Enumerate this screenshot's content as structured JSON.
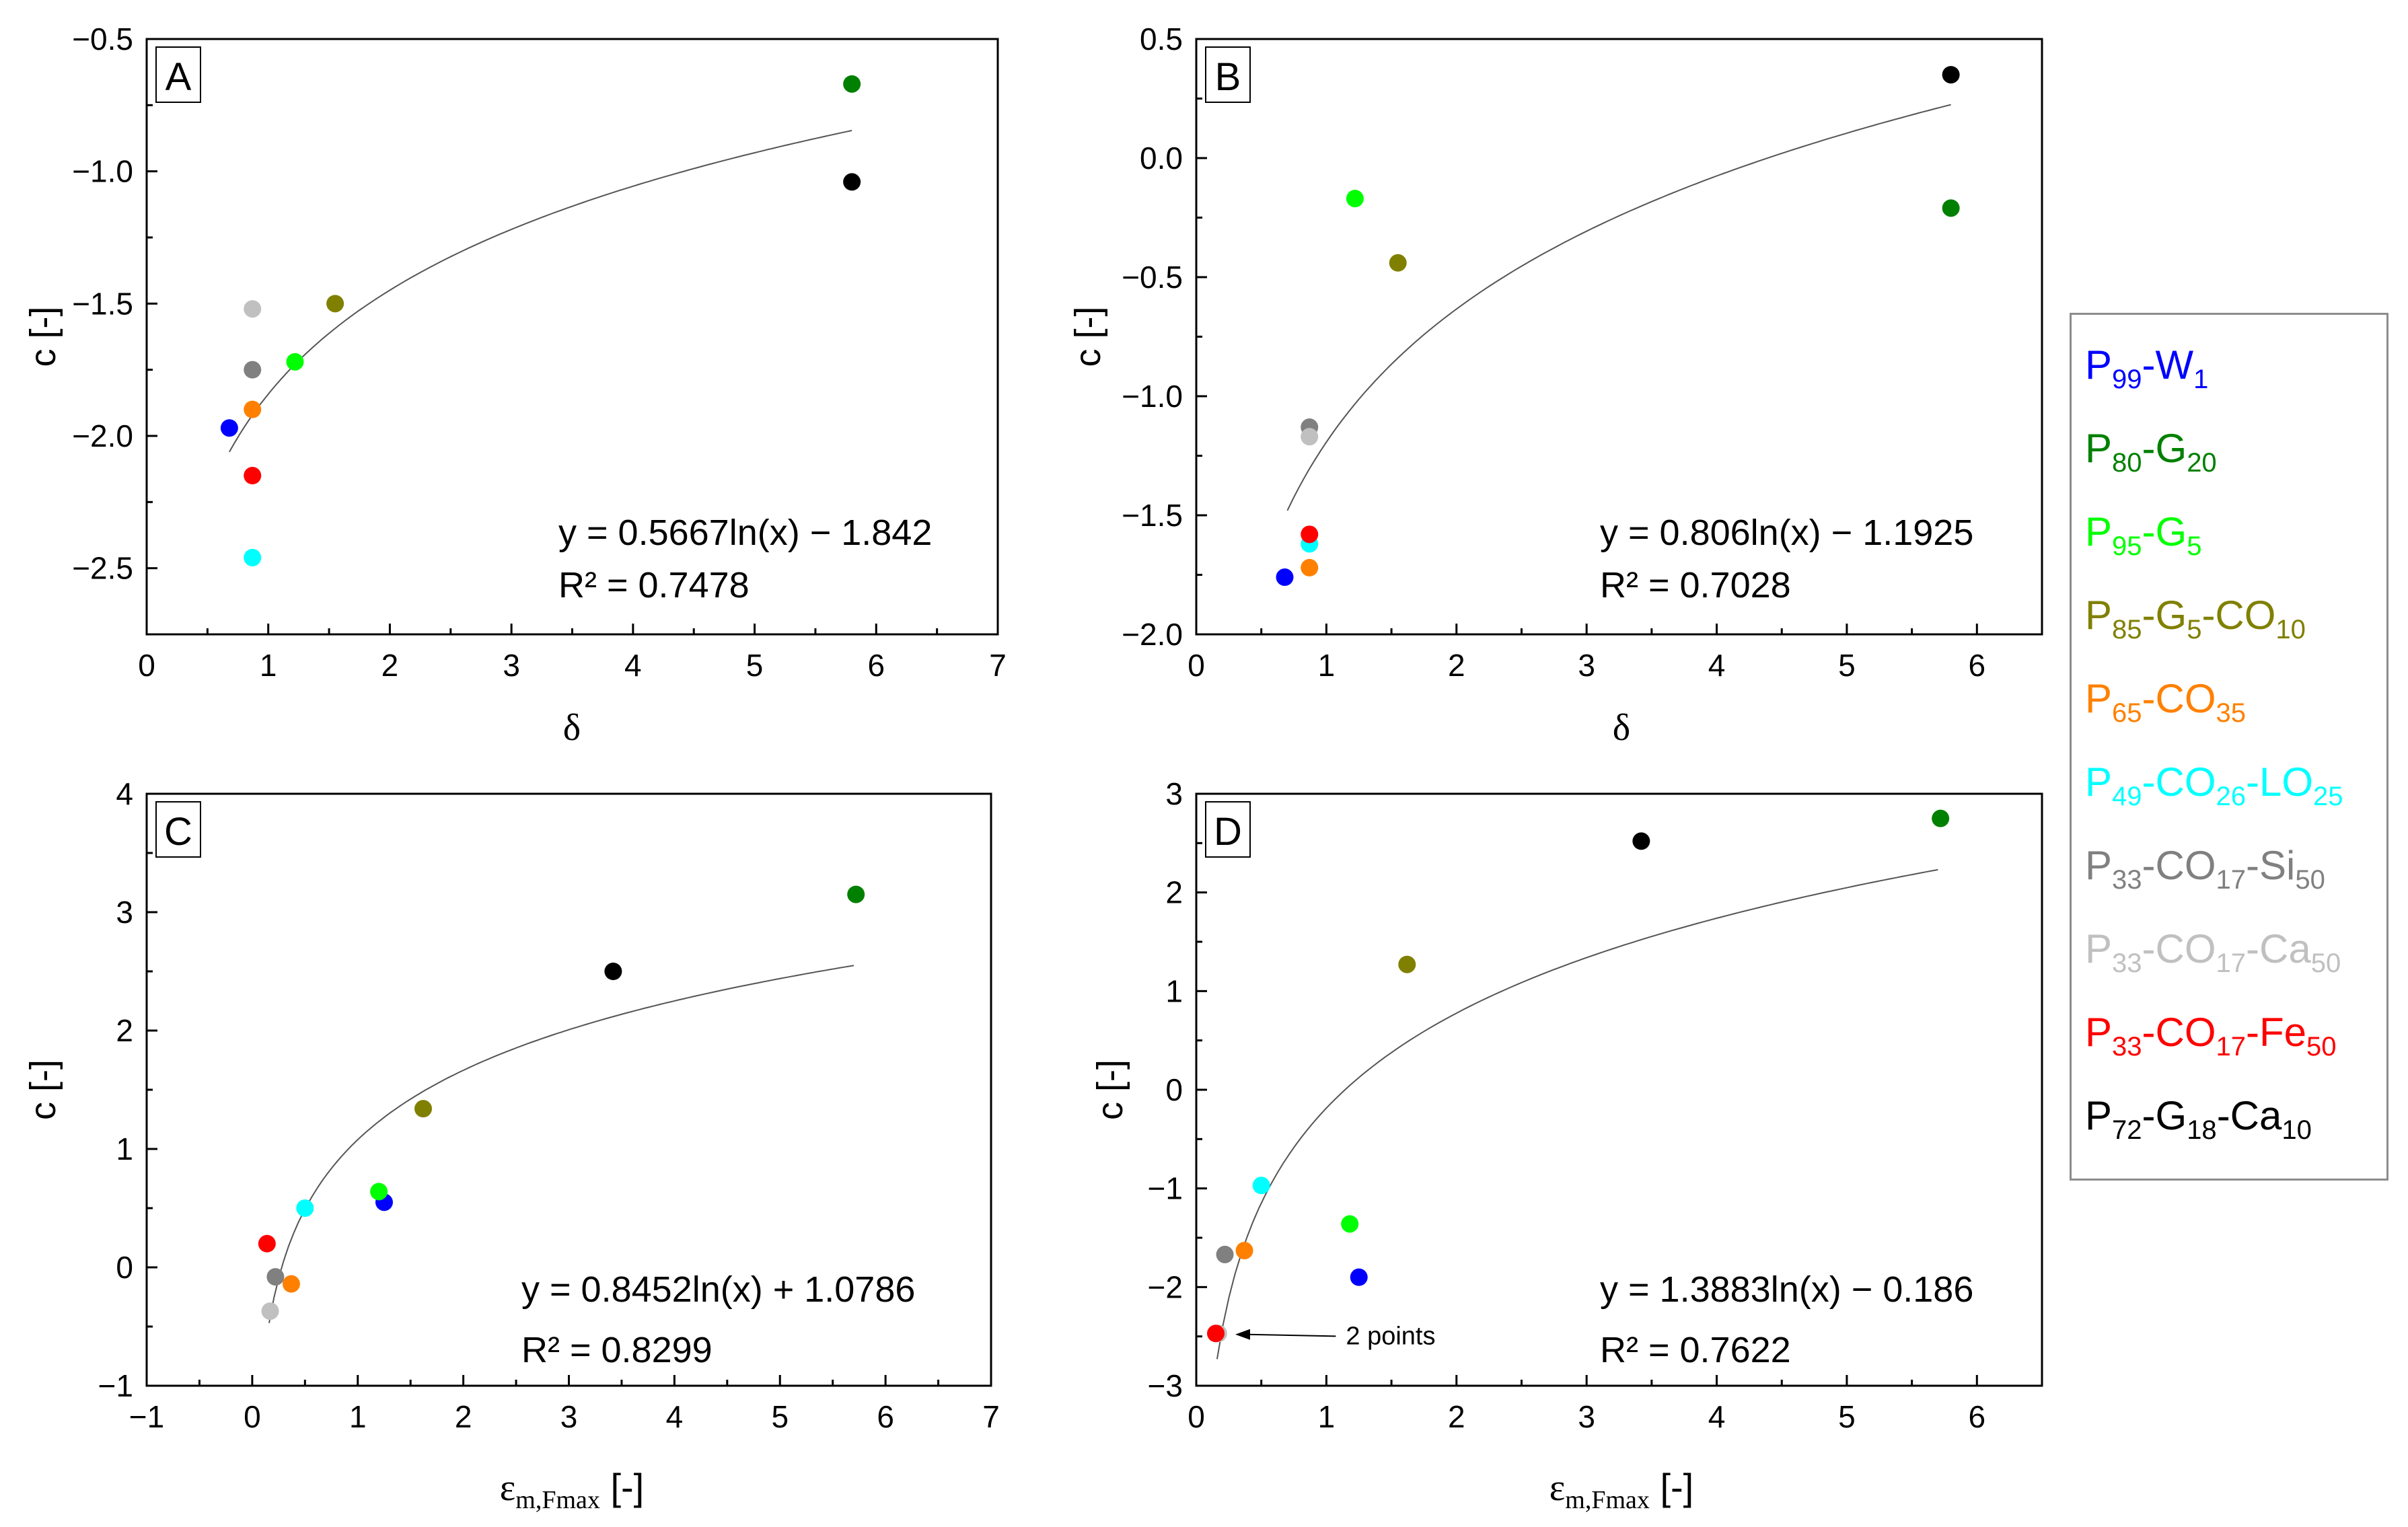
{
  "chart_data": [
    {
      "type": "scatter",
      "panel_label": "A",
      "xlabel": "δ",
      "ylabel": "c [-]",
      "xlim": [
        0,
        7
      ],
      "ylim": [
        -2.75,
        -0.5
      ],
      "xticks": [
        0,
        1,
        2,
        3,
        4,
        5,
        6,
        7
      ],
      "xtick_labels": [
        "0",
        "1",
        "2",
        "3",
        "4",
        "5",
        "6",
        "7"
      ],
      "yticks": [
        -2.5,
        -2.0,
        -1.5,
        -1.0,
        -0.5
      ],
      "ytick_labels": [
        "−2.5",
        "−2.0",
        "−1.5",
        "−1.0",
        "−0.5"
      ],
      "fit": {
        "a": 0.5667,
        "b": -1.842,
        "x_from": 0.68,
        "x_to": 5.8
      },
      "equation": "y = 0.5667ln(x) − 1.842",
      "r2_label": "R² = 0.7478",
      "points": [
        {
          "series": "P99-W1",
          "x": 0.68,
          "y": -1.97
        },
        {
          "series": "P80-G20",
          "x": 5.8,
          "y": -0.67
        },
        {
          "series": "P95-G5",
          "x": 1.22,
          "y": -1.72
        },
        {
          "series": "P85-G5-CO10",
          "x": 1.55,
          "y": -1.5
        },
        {
          "series": "P65-CO35",
          "x": 0.87,
          "y": -1.9
        },
        {
          "series": "P49-CO26-LO25",
          "x": 0.87,
          "y": -2.46
        },
        {
          "series": "P33-CO17-Si50",
          "x": 0.87,
          "y": -1.75
        },
        {
          "series": "P33-CO17-Ca50",
          "x": 0.87,
          "y": -1.52
        },
        {
          "series": "P33-CO17-Fe50",
          "x": 0.87,
          "y": -2.15
        },
        {
          "series": "P72-G18-Ca10",
          "x": 5.8,
          "y": -1.04
        }
      ]
    },
    {
      "type": "scatter",
      "panel_label": "B",
      "xlabel": "δ",
      "ylabel": "c [-]",
      "xlim": [
        0,
        6.5
      ],
      "ylim": [
        -2.0,
        0.5
      ],
      "xticks": [
        0,
        1,
        2,
        3,
        4,
        5,
        6
      ],
      "xtick_labels": [
        "0",
        "1",
        "2",
        "3",
        "4",
        "5",
        "6"
      ],
      "yticks": [
        -2.0,
        -1.5,
        -1.0,
        -0.5,
        0.0,
        0.5
      ],
      "ytick_labels": [
        "−2.0",
        "−1.5",
        "−1.0",
        "−0.5",
        "0.0",
        "0.5"
      ],
      "fit": {
        "a": 0.806,
        "b": -1.1925,
        "x_from": 0.7,
        "x_to": 5.8
      },
      "equation": "y = 0.806ln(x) − 1.1925",
      "r2_label": "R² = 0.7028",
      "points": [
        {
          "series": "P99-W1",
          "x": 0.68,
          "y": -1.76
        },
        {
          "series": "P80-G20",
          "x": 5.8,
          "y": -0.21
        },
        {
          "series": "P95-G5",
          "x": 1.22,
          "y": -0.17
        },
        {
          "series": "P85-G5-CO10",
          "x": 1.55,
          "y": -0.44
        },
        {
          "series": "P65-CO35",
          "x": 0.87,
          "y": -1.72
        },
        {
          "series": "P49-CO26-LO25",
          "x": 0.87,
          "y": -1.62
        },
        {
          "series": "P33-CO17-Si50",
          "x": 0.87,
          "y": -1.13
        },
        {
          "series": "P33-CO17-Ca50",
          "x": 0.87,
          "y": -1.17
        },
        {
          "series": "P33-CO17-Fe50",
          "x": 0.87,
          "y": -1.58
        },
        {
          "series": "P72-G18-Ca10",
          "x": 5.8,
          "y": 0.35
        }
      ]
    },
    {
      "type": "scatter",
      "panel_label": "C",
      "xlabel": "ε",
      "xlabel_sub": "m,Fmax",
      "xlabel_unit": " [-]",
      "ylabel": "c [-]",
      "xlim": [
        -1,
        7
      ],
      "ylim": [
        -1,
        4
      ],
      "xticks": [
        -1,
        0,
        1,
        2,
        3,
        4,
        5,
        6,
        7
      ],
      "xtick_labels": [
        "−1",
        "0",
        "1",
        "2",
        "3",
        "4",
        "5",
        "6",
        "7"
      ],
      "yticks": [
        -1,
        0,
        1,
        2,
        3,
        4
      ],
      "ytick_labels": [
        "−1",
        "0",
        "1",
        "2",
        "3",
        "4"
      ],
      "fit": {
        "a": 0.8452,
        "b": 1.0786,
        "x_from": 0.16,
        "x_to": 5.7
      },
      "equation": "y = 0.8452ln(x) + 1.0786",
      "r2_label": "R² = 0.8299",
      "points": [
        {
          "series": "P99-W1",
          "x": 1.25,
          "y": 0.55
        },
        {
          "series": "P80-G20",
          "x": 5.72,
          "y": 3.15
        },
        {
          "series": "P95-G5",
          "x": 1.2,
          "y": 0.64
        },
        {
          "series": "P85-G5-CO10",
          "x": 1.62,
          "y": 1.34
        },
        {
          "series": "P65-CO35",
          "x": 0.37,
          "y": -0.14
        },
        {
          "series": "P49-CO26-LO25",
          "x": 0.5,
          "y": 0.5
        },
        {
          "series": "P33-CO17-Si50",
          "x": 0.22,
          "y": -0.08
        },
        {
          "series": "P33-CO17-Ca50",
          "x": 0.17,
          "y": -0.37
        },
        {
          "series": "P33-CO17-Fe50",
          "x": 0.14,
          "y": 0.2
        },
        {
          "series": "P72-G18-Ca10",
          "x": 3.42,
          "y": 2.5
        }
      ]
    },
    {
      "type": "scatter",
      "panel_label": "D",
      "xlabel": "ε",
      "xlabel_sub": "m,Fmax",
      "xlabel_unit": " [-]",
      "ylabel": "c [-]",
      "xlim": [
        0,
        6.5
      ],
      "ylim": [
        -3,
        3
      ],
      "xticks": [
        0,
        1,
        2,
        3,
        4,
        5,
        6
      ],
      "xtick_labels": [
        "0",
        "1",
        "2",
        "3",
        "4",
        "5",
        "6"
      ],
      "yticks": [
        -3,
        -2,
        -1,
        0,
        1,
        2,
        3
      ],
      "ytick_labels": [
        "−3",
        "−2",
        "−1",
        "0",
        "1",
        "2",
        "3"
      ],
      "fit": {
        "a": 1.3883,
        "b": -0.186,
        "x_from": 0.16,
        "x_to": 5.7
      },
      "equation": "y = 1.3883ln(x) − 0.186",
      "r2_label": "R² = 0.7622",
      "annotation": "2 points",
      "annotation_target": {
        "x": 0.3,
        "y": -2.48
      },
      "annotation_text_at": {
        "x": 1.15,
        "y": -2.43
      },
      "points": [
        {
          "series": "P99-W1",
          "x": 1.25,
          "y": -1.9
        },
        {
          "series": "P80-G20",
          "x": 5.72,
          "y": 2.75
        },
        {
          "series": "P95-G5",
          "x": 1.18,
          "y": -1.36
        },
        {
          "series": "P85-G5-CO10",
          "x": 1.62,
          "y": 1.27
        },
        {
          "series": "P65-CO35",
          "x": 0.37,
          "y": -1.63
        },
        {
          "series": "P49-CO26-LO25",
          "x": 0.5,
          "y": -0.97
        },
        {
          "series": "P33-CO17-Si50",
          "x": 0.22,
          "y": -1.67
        },
        {
          "series": "P33-CO17-Ca50",
          "x": 0.17,
          "y": -2.47
        },
        {
          "series": "P33-CO17-Fe50",
          "x": 0.15,
          "y": -2.47
        },
        {
          "series": "P72-G18-Ca10",
          "x": 3.42,
          "y": 2.52
        }
      ]
    }
  ],
  "legend": [
    {
      "id": "P99-W1",
      "color": "#0000ff",
      "parts": [
        [
          "P",
          ""
        ],
        [
          "99",
          "sub"
        ],
        [
          "-W",
          ""
        ],
        [
          "1",
          "sub"
        ]
      ]
    },
    {
      "id": "P80-G20",
      "color": "#008000",
      "parts": [
        [
          "P",
          ""
        ],
        [
          "80",
          "sub"
        ],
        [
          "-G",
          ""
        ],
        [
          "20",
          "sub"
        ]
      ]
    },
    {
      "id": "P95-G5",
      "color": "#00ff00",
      "parts": [
        [
          "P",
          ""
        ],
        [
          "95",
          "sub"
        ],
        [
          "-G",
          ""
        ],
        [
          "5",
          "sub"
        ]
      ]
    },
    {
      "id": "P85-G5-CO10",
      "color": "#808000",
      "parts": [
        [
          "P",
          ""
        ],
        [
          "85",
          "sub"
        ],
        [
          "-G",
          ""
        ],
        [
          "5",
          "sub"
        ],
        [
          "-CO",
          ""
        ],
        [
          "10",
          "sub"
        ]
      ]
    },
    {
      "id": "P65-CO35",
      "color": "#ff8000",
      "parts": [
        [
          "P",
          ""
        ],
        [
          "65",
          "sub"
        ],
        [
          "-CO",
          ""
        ],
        [
          "35",
          "sub"
        ]
      ]
    },
    {
      "id": "P49-CO26-LO25",
      "color": "#00ffff",
      "parts": [
        [
          "P",
          ""
        ],
        [
          "49",
          "sub"
        ],
        [
          "-CO",
          ""
        ],
        [
          "26",
          "sub"
        ],
        [
          "-LO",
          ""
        ],
        [
          "25",
          "sub"
        ]
      ]
    },
    {
      "id": "P33-CO17-Si50",
      "color": "#808080",
      "parts": [
        [
          "P",
          ""
        ],
        [
          "33",
          "sub"
        ],
        [
          "-CO",
          ""
        ],
        [
          "17",
          "sub"
        ],
        [
          "-Si",
          ""
        ],
        [
          "50",
          "sub"
        ]
      ]
    },
    {
      "id": "P33-CO17-Ca50",
      "color": "#c0c0c0",
      "parts": [
        [
          "P",
          ""
        ],
        [
          "33",
          "sub"
        ],
        [
          "-CO",
          ""
        ],
        [
          "17",
          "sub"
        ],
        [
          "-Ca",
          ""
        ],
        [
          "50",
          "sub"
        ]
      ]
    },
    {
      "id": "P33-CO17-Fe50",
      "color": "#ff0000",
      "parts": [
        [
          "P",
          ""
        ],
        [
          "33",
          "sub"
        ],
        [
          "-CO",
          ""
        ],
        [
          "17",
          "sub"
        ],
        [
          "-Fe",
          ""
        ],
        [
          "50",
          "sub"
        ]
      ]
    },
    {
      "id": "P72-G18-Ca10",
      "color": "#000000",
      "parts": [
        [
          "P",
          ""
        ],
        [
          "72",
          "sub"
        ],
        [
          "-G",
          ""
        ],
        [
          "18",
          "sub"
        ],
        [
          "-Ca",
          ""
        ],
        [
          "10",
          "sub"
        ]
      ]
    }
  ]
}
